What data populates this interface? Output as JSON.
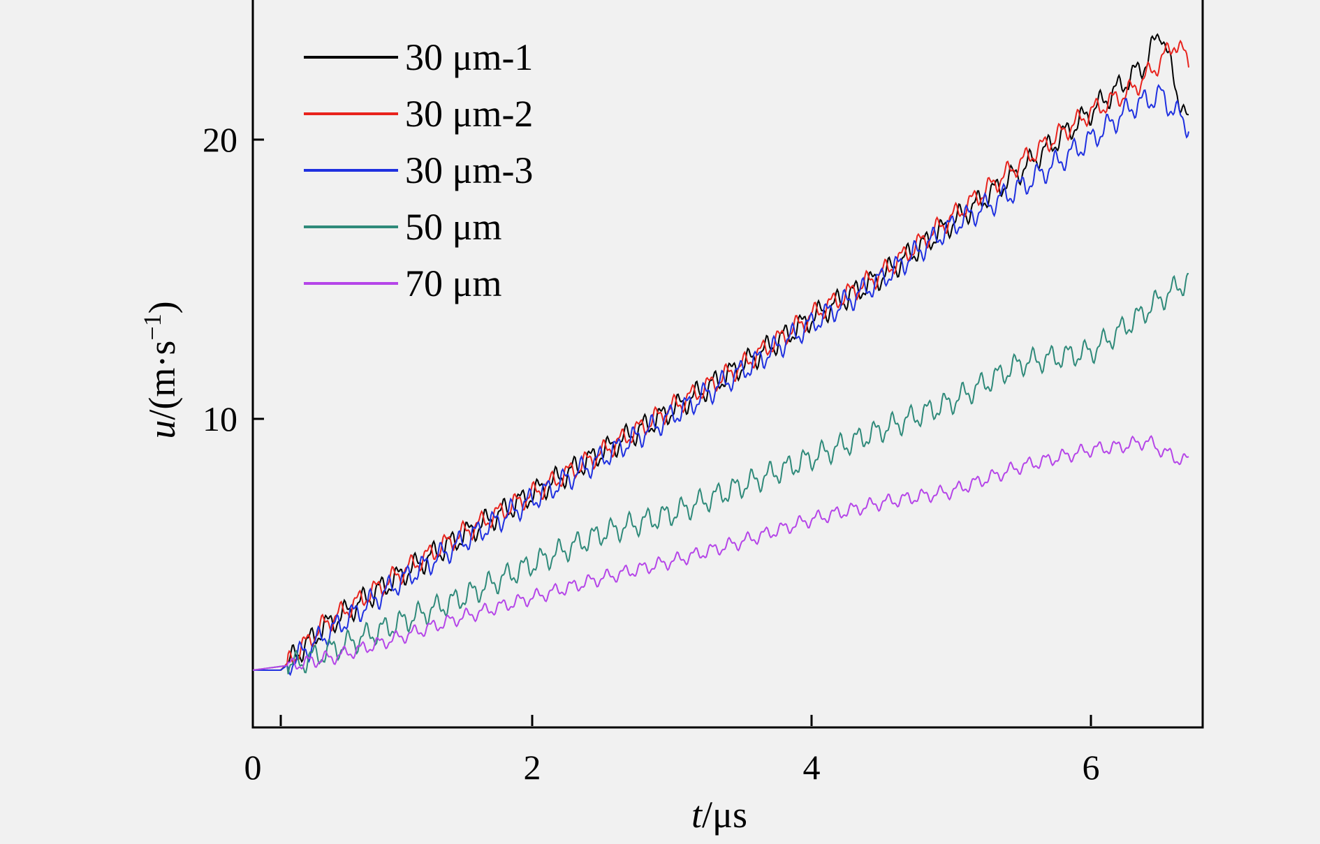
{
  "chart_data": {
    "type": "line",
    "xlabel_var": "t",
    "xlabel_unit": "/μs",
    "ylabel_var": "u",
    "ylabel_unit": "/(m·s",
    "ylabel_exp": "−1",
    "ylabel_close": ")",
    "xlim": [
      0,
      6.8
    ],
    "ylim": [
      -1,
      25
    ],
    "xticks": [
      0,
      2,
      4,
      6
    ],
    "xtick_labels": [
      "0",
      "2",
      "4",
      "6"
    ],
    "yticks": [
      10,
      20
    ],
    "ytick_labels": [
      "10",
      "20"
    ],
    "grid": false,
    "legend_position": "top-left",
    "series": [
      {
        "name": "30 μm-1",
        "color": "#000000",
        "amp": 0.35,
        "x": [
          0.0,
          0.2,
          0.5,
          1.0,
          1.5,
          2.0,
          2.5,
          3.0,
          3.5,
          4.0,
          4.5,
          5.0,
          5.5,
          6.0,
          6.3,
          6.4,
          6.5,
          6.6,
          6.7
        ],
        "y": [
          1.0,
          1.0,
          2.5,
          4.2,
          5.8,
          7.3,
          8.8,
          10.3,
          11.9,
          13.6,
          15.1,
          17.0,
          18.9,
          21.0,
          22.3,
          22.8,
          24.0,
          22.0,
          20.5
        ]
      },
      {
        "name": "30 μm-2",
        "color": "#e8231d",
        "amp": 0.3,
        "x": [
          0.0,
          0.2,
          0.5,
          1.0,
          1.5,
          2.0,
          2.5,
          3.0,
          3.5,
          4.0,
          4.5,
          5.0,
          5.5,
          6.0,
          6.3,
          6.5,
          6.6,
          6.7
        ],
        "y": [
          1.0,
          1.0,
          2.6,
          4.3,
          5.9,
          7.3,
          8.8,
          10.4,
          11.9,
          13.7,
          15.2,
          17.2,
          19.2,
          21.0,
          21.8,
          22.8,
          23.5,
          22.8
        ]
      },
      {
        "name": "30 μm-3",
        "color": "#1f30e0",
        "amp": 0.35,
        "x": [
          0.0,
          0.2,
          0.5,
          1.0,
          1.5,
          2.0,
          2.5,
          3.0,
          3.5,
          4.0,
          4.5,
          5.0,
          5.5,
          6.0,
          6.3,
          6.5,
          6.6,
          6.7
        ],
        "y": [
          1.0,
          1.0,
          2.2,
          4.0,
          5.6,
          7.1,
          8.6,
          10.1,
          11.7,
          13.4,
          15.0,
          16.9,
          18.3,
          20.0,
          21.2,
          21.6,
          21.0,
          20.5
        ]
      },
      {
        "name": "50 μm",
        "color": "#2f8a7a",
        "amp": 0.35,
        "x": [
          0.0,
          0.3,
          0.6,
          1.0,
          1.5,
          2.0,
          2.5,
          3.0,
          3.5,
          4.0,
          4.5,
          5.0,
          5.5,
          6.0,
          6.3,
          6.5,
          6.7
        ],
        "y": [
          1.0,
          1.2,
          1.8,
          2.6,
          3.6,
          4.8,
          5.9,
          6.6,
          7.6,
          8.6,
          9.6,
          10.6,
          12.0,
          12.4,
          13.5,
          14.3,
          15.0
        ]
      },
      {
        "name": "70 μm",
        "color": "#b545e8",
        "amp": 0.2,
        "x": [
          0.0,
          0.3,
          0.6,
          1.0,
          1.5,
          2.0,
          2.5,
          3.0,
          3.5,
          4.0,
          4.5,
          5.0,
          5.5,
          6.0,
          6.2,
          6.4,
          6.5,
          6.6,
          6.7
        ],
        "y": [
          1.0,
          1.2,
          1.5,
          2.1,
          2.9,
          3.6,
          4.3,
          4.9,
          5.6,
          6.4,
          7.0,
          7.4,
          8.3,
          8.9,
          9.0,
          9.2,
          8.9,
          8.6,
          8.5
        ]
      }
    ]
  }
}
